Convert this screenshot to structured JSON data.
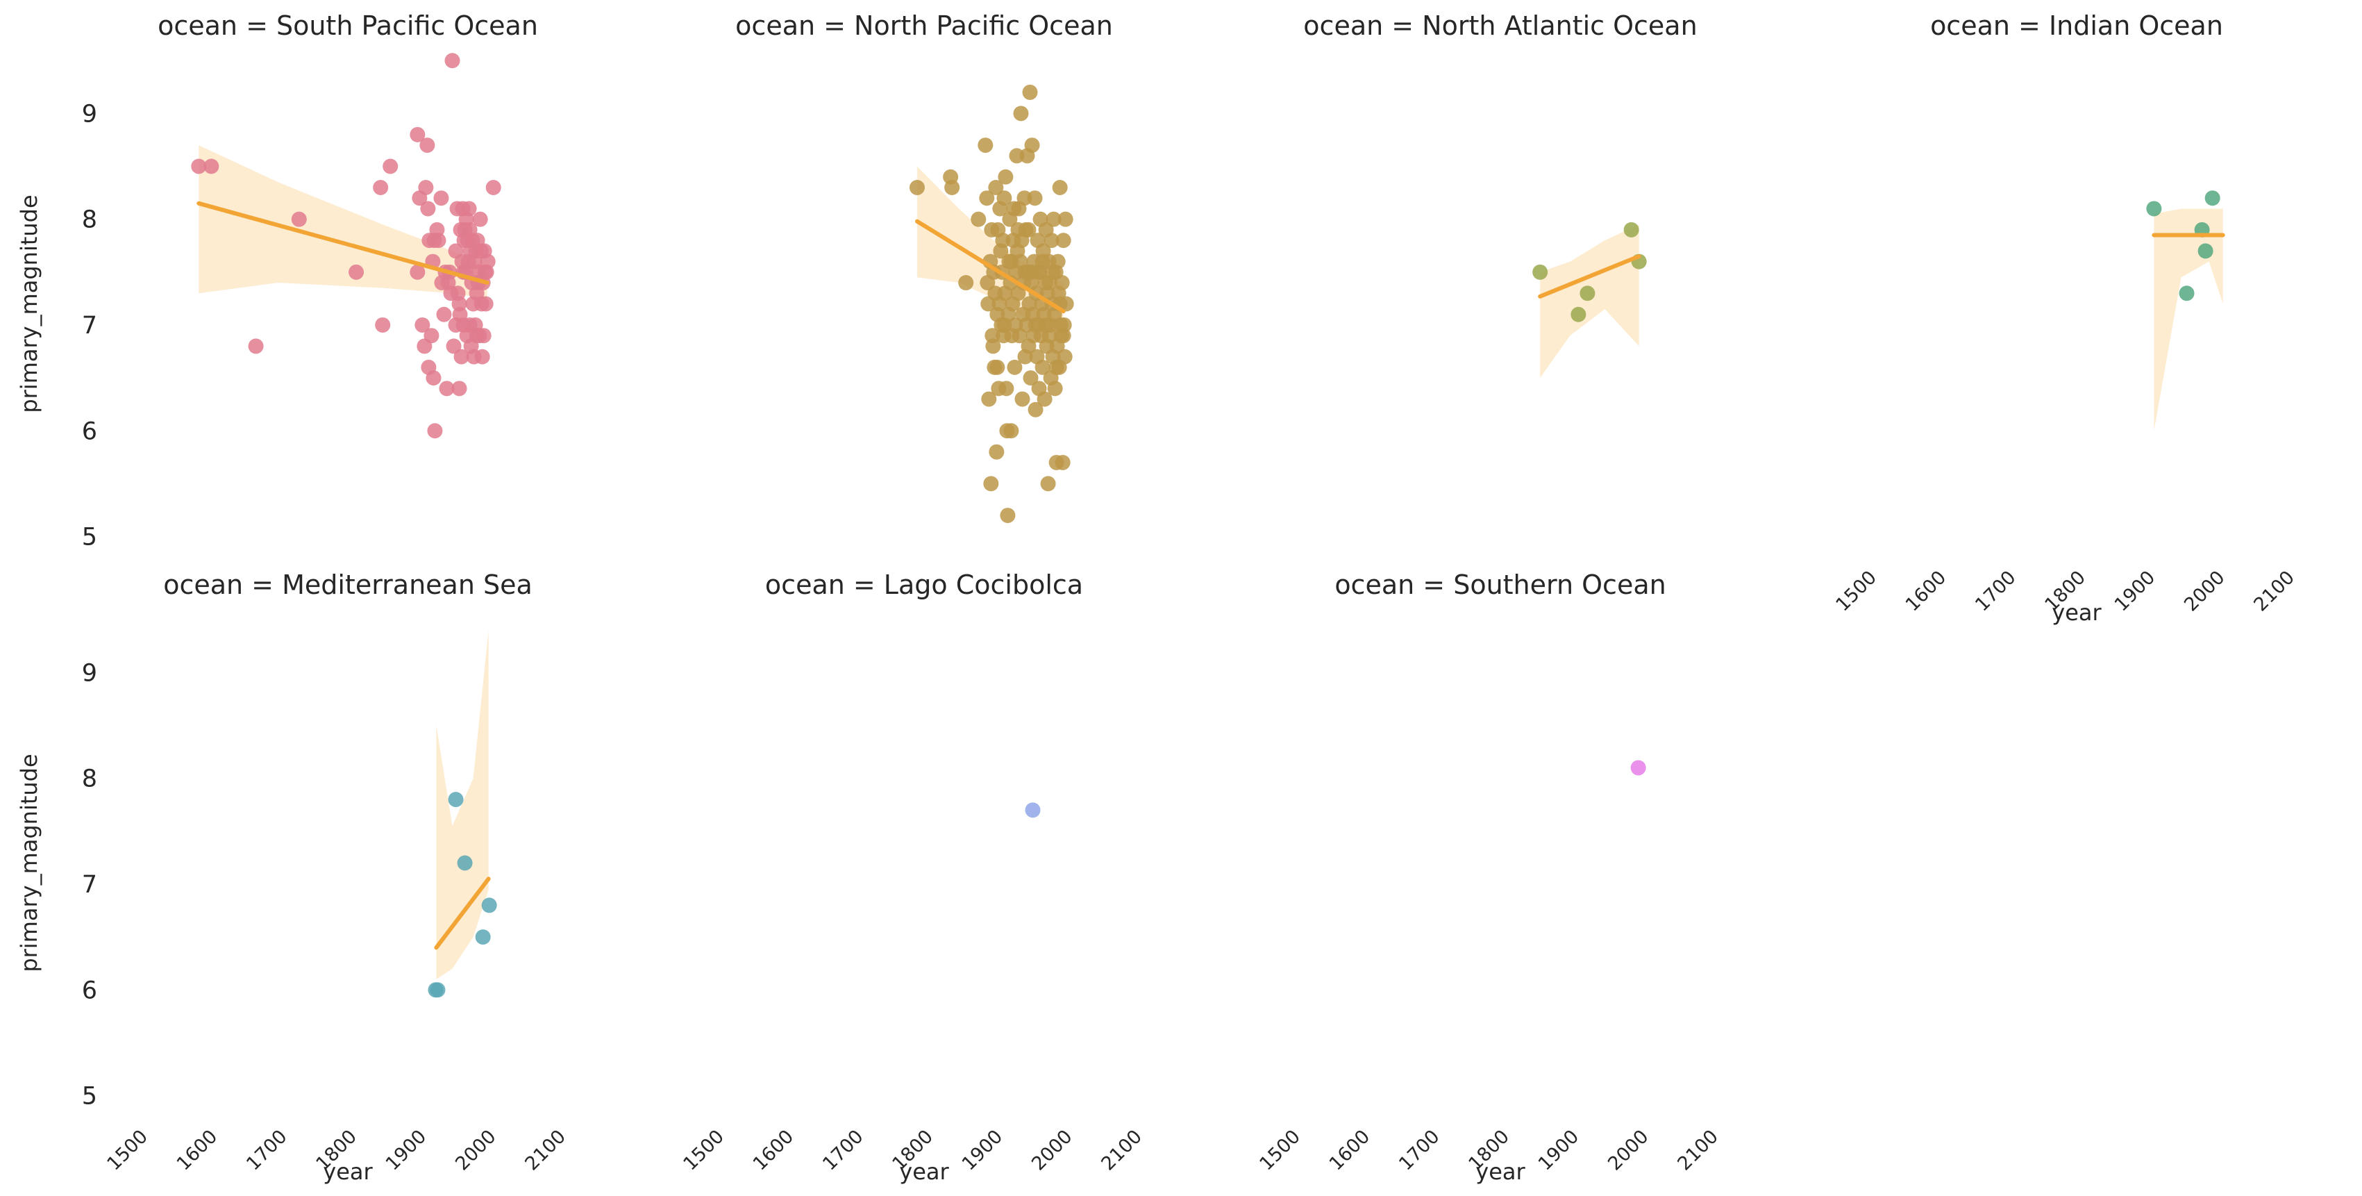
{
  "chart_data": {
    "type": "scatter",
    "layout": "facet-grid",
    "columns": 4,
    "xlabel": "year",
    "ylabel": "primary_magnitude",
    "xlim": [
      1500,
      2100
    ],
    "ylim": [
      4.8,
      9.6
    ],
    "xticks": [
      "1500",
      "1600",
      "1700",
      "1800",
      "1900",
      "2000",
      "2100"
    ],
    "yticks": [
      "5",
      "6",
      "7",
      "8",
      "9"
    ],
    "grid": false,
    "legend": "none",
    "regression_line_color": "#f2a535",
    "ci_band_color": "#fde9c8",
    "panels": [
      {
        "title": "ocean = South Pacific Ocean",
        "color": "#e07b8e",
        "line": {
          "x": [
            1586,
            2000
          ],
          "y": [
            8.15,
            7.4
          ]
        },
        "band": {
          "x": [
            1586,
            1700,
            1850,
            1950,
            2000
          ],
          "upper": [
            8.7,
            8.35,
            7.95,
            7.7,
            7.55
          ],
          "lower": [
            7.3,
            7.4,
            7.35,
            7.3,
            7.25
          ]
        },
        "points": [
          [
            1586,
            8.5
          ],
          [
            1604,
            8.5
          ],
          [
            1668,
            6.8
          ],
          [
            1730,
            8.0
          ],
          [
            1812,
            7.5
          ],
          [
            1850,
            7.0
          ],
          [
            1847,
            8.3
          ],
          [
            1861,
            8.5
          ],
          [
            1900,
            8.8
          ],
          [
            1903,
            8.2
          ],
          [
            1900,
            7.5
          ],
          [
            1907,
            7.0
          ],
          [
            1910,
            6.8
          ],
          [
            1912,
            8.3
          ],
          [
            1914,
            8.7
          ],
          [
            1915,
            8.1
          ],
          [
            1916,
            6.6
          ],
          [
            1917,
            7.8
          ],
          [
            1920,
            6.9
          ],
          [
            1922,
            7.6
          ],
          [
            1923,
            6.5
          ],
          [
            1924,
            7.8
          ],
          [
            1925,
            6.0
          ],
          [
            1928,
            7.9
          ],
          [
            1930,
            7.8
          ],
          [
            1934,
            8.2
          ],
          [
            1935,
            7.4
          ],
          [
            1938,
            7.1
          ],
          [
            1940,
            7.5
          ],
          [
            1942,
            6.4
          ],
          [
            1944,
            7.4
          ],
          [
            1946,
            7.5
          ],
          [
            1948,
            7.3
          ],
          [
            1950,
            9.5
          ],
          [
            1952,
            6.8
          ],
          [
            1955,
            7.0
          ],
          [
            1957,
            8.1
          ],
          [
            1958,
            7.3
          ],
          [
            1960,
            6.4
          ],
          [
            1961,
            7.1
          ],
          [
            1962,
            7.9
          ],
          [
            1963,
            6.7
          ],
          [
            1964,
            7.6
          ],
          [
            1965,
            8.1
          ],
          [
            1966,
            7.0
          ],
          [
            1967,
            7.8
          ],
          [
            1968,
            7.9
          ],
          [
            1969,
            7.5
          ],
          [
            1970,
            8.0
          ],
          [
            1971,
            6.9
          ],
          [
            1972,
            7.8
          ],
          [
            1973,
            7.6
          ],
          [
            1974,
            8.1
          ],
          [
            1975,
            7.0
          ],
          [
            1976,
            7.7
          ],
          [
            1977,
            6.8
          ],
          [
            1978,
            7.4
          ],
          [
            1979,
            7.8
          ],
          [
            1980,
            7.2
          ],
          [
            1981,
            6.7
          ],
          [
            1982,
            7.6
          ],
          [
            1983,
            7.0
          ],
          [
            1984,
            7.7
          ],
          [
            1985,
            6.9
          ],
          [
            1986,
            7.8
          ],
          [
            1987,
            7.4
          ],
          [
            1988,
            7.5
          ],
          [
            1989,
            6.9
          ],
          [
            1990,
            8.0
          ],
          [
            1991,
            7.7
          ],
          [
            1992,
            7.2
          ],
          [
            1993,
            6.7
          ],
          [
            1994,
            7.4
          ],
          [
            1995,
            6.9
          ],
          [
            1996,
            7.7
          ],
          [
            1997,
            7.5
          ],
          [
            1998,
            7.2
          ],
          [
            2001,
            7.6
          ],
          [
            2009,
            8.3
          ],
          [
            1955,
            7.7
          ],
          [
            1960,
            7.2
          ],
          [
            1966,
            7.5
          ],
          [
            1975,
            7.9
          ],
          [
            1985,
            7.3
          ],
          [
            1999,
            7.5
          ]
        ]
      },
      {
        "title": "ocean = North Pacific Ocean",
        "color": "#bc9748",
        "line": {
          "x": [
            1790,
            2000
          ],
          "y": [
            7.98,
            7.13
          ]
        },
        "band": {
          "x": [
            1790,
            1850,
            1900,
            1950,
            2000
          ],
          "upper": [
            8.5,
            8.1,
            7.8,
            7.55,
            7.4
          ],
          "lower": [
            7.45,
            7.4,
            7.25,
            7.05,
            6.9
          ]
        },
        "points": [
          [
            1790,
            8.3
          ],
          [
            1838,
            8.4
          ],
          [
            1840,
            8.3
          ],
          [
            1860,
            7.4
          ],
          [
            1878,
            8.0
          ],
          [
            1888,
            8.7
          ],
          [
            1890,
            8.2
          ],
          [
            1891,
            7.4
          ],
          [
            1892,
            7.2
          ],
          [
            1893,
            6.3
          ],
          [
            1895,
            7.6
          ],
          [
            1896,
            5.5
          ],
          [
            1897,
            7.9
          ],
          [
            1898,
            6.9
          ],
          [
            1899,
            6.8
          ],
          [
            1900,
            7.5
          ],
          [
            1901,
            6.6
          ],
          [
            1902,
            7.3
          ],
          [
            1903,
            8.3
          ],
          [
            1904,
            5.8
          ],
          [
            1905,
            7.1
          ],
          [
            1906,
            7.9
          ],
          [
            1907,
            6.4
          ],
          [
            1908,
            7.2
          ],
          [
            1909,
            8.1
          ],
          [
            1910,
            7.7
          ],
          [
            1911,
            7.0
          ],
          [
            1912,
            7.5
          ],
          [
            1913,
            7.8
          ],
          [
            1914,
            6.9
          ],
          [
            1915,
            8.2
          ],
          [
            1916,
            7.3
          ],
          [
            1917,
            8.4
          ],
          [
            1918,
            6.4
          ],
          [
            1919,
            6.0
          ],
          [
            1920,
            5.2
          ],
          [
            1921,
            7.1
          ],
          [
            1922,
            7.6
          ],
          [
            1923,
            8.0
          ],
          [
            1924,
            7.4
          ],
          [
            1925,
            6.0
          ],
          [
            1926,
            6.9
          ],
          [
            1927,
            7.2
          ],
          [
            1928,
            7.8
          ],
          [
            1929,
            8.1
          ],
          [
            1930,
            6.6
          ],
          [
            1931,
            7.0
          ],
          [
            1932,
            7.5
          ],
          [
            1933,
            8.6
          ],
          [
            1934,
            7.7
          ],
          [
            1935,
            7.3
          ],
          [
            1936,
            8.1
          ],
          [
            1937,
            6.9
          ],
          [
            1938,
            7.6
          ],
          [
            1939,
            9.0
          ],
          [
            1940,
            7.8
          ],
          [
            1941,
            6.3
          ],
          [
            1942,
            7.1
          ],
          [
            1943,
            7.4
          ],
          [
            1944,
            8.2
          ],
          [
            1945,
            6.7
          ],
          [
            1946,
            7.9
          ],
          [
            1947,
            7.0
          ],
          [
            1948,
            8.6
          ],
          [
            1949,
            7.5
          ],
          [
            1950,
            6.8
          ],
          [
            1951,
            7.2
          ],
          [
            1952,
            9.2
          ],
          [
            1953,
            6.5
          ],
          [
            1954,
            7.4
          ],
          [
            1955,
            8.7
          ],
          [
            1956,
            7.1
          ],
          [
            1957,
            6.9
          ],
          [
            1958,
            7.6
          ],
          [
            1959,
            8.2
          ],
          [
            1960,
            6.2
          ],
          [
            1961,
            7.3
          ],
          [
            1962,
            6.7
          ],
          [
            1963,
            7.8
          ],
          [
            1964,
            7.0
          ],
          [
            1965,
            6.4
          ],
          [
            1966,
            7.5
          ],
          [
            1967,
            8.0
          ],
          [
            1968,
            6.9
          ],
          [
            1969,
            7.2
          ],
          [
            1970,
            6.6
          ],
          [
            1971,
            7.7
          ],
          [
            1972,
            7.1
          ],
          [
            1973,
            6.3
          ],
          [
            1974,
            7.4
          ],
          [
            1975,
            7.9
          ],
          [
            1976,
            6.8
          ],
          [
            1977,
            7.3
          ],
          [
            1978,
            5.5
          ],
          [
            1979,
            7.6
          ],
          [
            1980,
            6.9
          ],
          [
            1981,
            7.0
          ],
          [
            1982,
            6.5
          ],
          [
            1983,
            7.8
          ],
          [
            1984,
            7.2
          ],
          [
            1985,
            6.7
          ],
          [
            1986,
            8.0
          ],
          [
            1987,
            7.1
          ],
          [
            1988,
            6.4
          ],
          [
            1989,
            7.5
          ],
          [
            1990,
            5.7
          ],
          [
            1991,
            6.8
          ],
          [
            1992,
            7.6
          ],
          [
            1993,
            7.3
          ],
          [
            1994,
            6.6
          ],
          [
            1995,
            8.3
          ],
          [
            1996,
            7.0
          ],
          [
            1997,
            6.9
          ],
          [
            1998,
            7.4
          ],
          [
            1999,
            5.7
          ],
          [
            2000,
            7.8
          ],
          [
            2001,
            7.0
          ],
          [
            2002,
            6.7
          ],
          [
            2003,
            8.0
          ],
          [
            2004,
            7.2
          ],
          [
            1955,
            7.5
          ],
          [
            1960,
            7.0
          ],
          [
            1965,
            7.5
          ],
          [
            1970,
            7.6
          ],
          [
            1975,
            7.0
          ],
          [
            1980,
            7.4
          ],
          [
            1985,
            7.5
          ],
          [
            1990,
            6.6
          ],
          [
            1995,
            7.2
          ],
          [
            2000,
            6.9
          ],
          [
            1945,
            7.5
          ],
          [
            1950,
            7.9
          ],
          [
            1935,
            7.9
          ],
          [
            1925,
            7.6
          ],
          [
            1915,
            7.0
          ],
          [
            1905,
            6.6
          ]
        ]
      },
      {
        "title": "ocean = North Atlantic Ocean",
        "color": "#99a84c",
        "line": {
          "x": [
            1857,
            1999
          ],
          "y": [
            7.27,
            7.65
          ]
        },
        "band": {
          "x": [
            1857,
            1900,
            1950,
            1999
          ],
          "upper": [
            7.5,
            7.6,
            7.8,
            7.95
          ],
          "lower": [
            6.5,
            6.9,
            7.15,
            6.8
          ]
        },
        "points": [
          [
            1857,
            7.5
          ],
          [
            1912,
            7.1
          ],
          [
            1925,
            7.3
          ],
          [
            1988,
            7.9
          ],
          [
            1999,
            7.6
          ]
        ]
      },
      {
        "title": "ocean = Indian Ocean",
        "color": "#55a880",
        "line": {
          "x": [
            1911,
            2010
          ],
          "y": [
            7.85,
            7.85
          ]
        },
        "band": {
          "x": [
            1911,
            1950,
            1990,
            2010
          ],
          "upper": [
            8.05,
            8.1,
            8.1,
            8.1
          ],
          "lower": [
            6.0,
            7.45,
            7.6,
            7.2
          ]
        },
        "points": [
          [
            1911,
            8.1
          ],
          [
            1958,
            7.3
          ],
          [
            1980,
            7.9
          ],
          [
            1985,
            7.7
          ],
          [
            1995,
            8.2
          ]
        ]
      },
      {
        "title": "ocean = Mediterranean Sea",
        "color": "#5aa7b5",
        "line": {
          "x": [
            1927,
            2002
          ],
          "y": [
            6.4,
            7.05
          ]
        },
        "band": {
          "x": [
            1927,
            1950,
            1980,
            2002
          ],
          "upper": [
            8.5,
            7.55,
            8.0,
            9.4
          ],
          "lower": [
            6.1,
            6.2,
            6.5,
            6.95
          ]
        },
        "points": [
          [
            1926,
            6.0
          ],
          [
            1929,
            6.0
          ],
          [
            1955,
            7.8
          ],
          [
            1968,
            7.2
          ],
          [
            1994,
            6.5
          ],
          [
            2003,
            6.8
          ]
        ]
      },
      {
        "title": "ocean = Lago Cocibolca",
        "color": "#8fa6e8",
        "points": [
          [
            1956,
            7.7
          ]
        ]
      },
      {
        "title": "ocean = Southern Ocean",
        "color": "#e57ee8",
        "points": [
          [
            1998,
            8.1
          ]
        ]
      }
    ]
  }
}
